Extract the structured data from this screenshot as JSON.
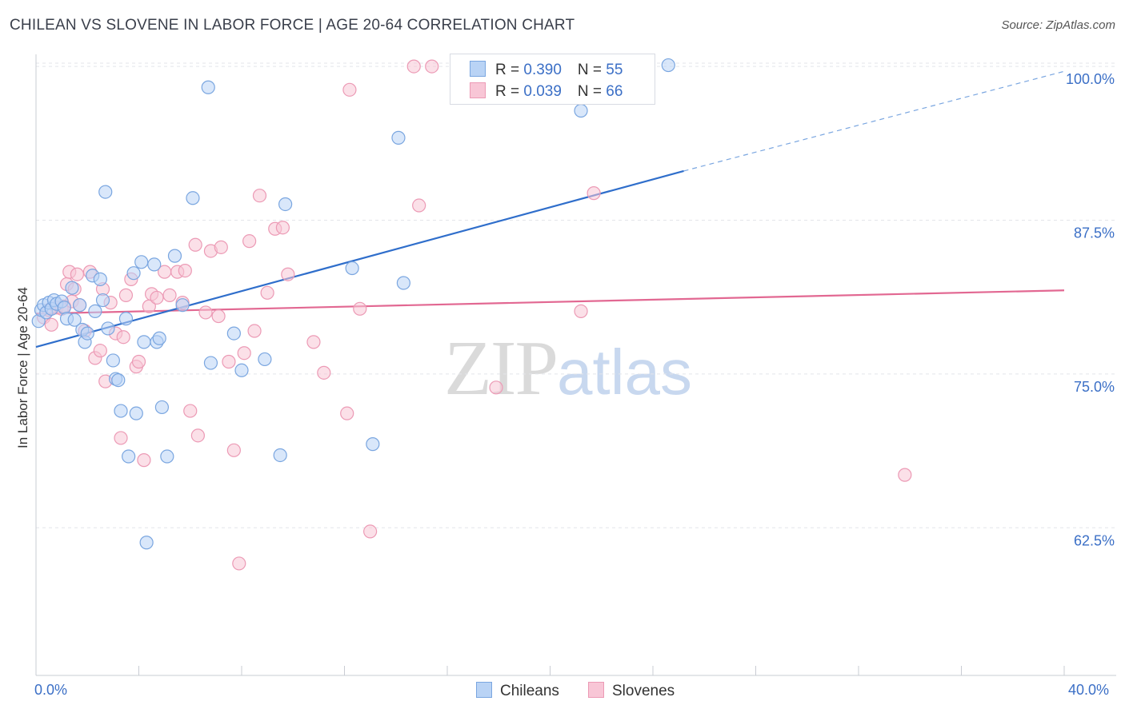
{
  "title": "CHILEAN VS SLOVENE IN LABOR FORCE | AGE 20-64 CORRELATION CHART",
  "source": "Source: ZipAtlas.com",
  "watermark": {
    "zip": "ZIP",
    "atlas": "atlas"
  },
  "legend": {
    "chileans": {
      "r_label": "R = ",
      "r_value": "0.390",
      "n_label": "N = ",
      "n_value": "55"
    },
    "slovenes": {
      "r_label": "R = ",
      "r_value": "0.039",
      "n_label": "N = ",
      "n_value": "66"
    }
  },
  "colors": {
    "chileans_fill": "#b9d3f5",
    "chileans_stroke": "#7aa6e0",
    "chileans_line": "#2f6ecb",
    "slovenes_fill": "#f8c6d6",
    "slovenes_stroke": "#ec9ab5",
    "slovenes_line": "#e26892",
    "tick_label": "#3b6fc6"
  },
  "chart_data": {
    "type": "scatter",
    "title": "CHILEAN VS SLOVENE IN LABOR FORCE | AGE 20-64 CORRELATION CHART",
    "xlabel": "",
    "ylabel": "In Labor Force | Age 20-64",
    "xlim": [
      0,
      40
    ],
    "ylim": [
      50.5,
      101.5
    ],
    "x_tick_labels": [
      "0.0%",
      "40.0%"
    ],
    "y_ticks": [
      62.5,
      75.0,
      87.5,
      100.0
    ],
    "y_tick_labels": [
      "62.5%",
      "75.0%",
      "87.5%",
      "100.0%"
    ],
    "grid": true,
    "legend_position": "top-center",
    "series": [
      {
        "name": "Chileans",
        "R": 0.39,
        "N": 55,
        "trend": {
          "x": [
            0,
            25.2
          ],
          "y": [
            77.2,
            91.5
          ],
          "dashed_to": [
            40,
            99.6
          ]
        },
        "points": [
          [
            0.1,
            79.3
          ],
          [
            0.2,
            80.2
          ],
          [
            0.3,
            80.6
          ],
          [
            0.4,
            80.0
          ],
          [
            0.5,
            80.8
          ],
          [
            0.6,
            80.3
          ],
          [
            0.7,
            81.0
          ],
          [
            0.8,
            80.7
          ],
          [
            1.0,
            80.9
          ],
          [
            1.1,
            80.4
          ],
          [
            1.2,
            79.5
          ],
          [
            1.4,
            82.0
          ],
          [
            1.5,
            79.4
          ],
          [
            1.7,
            80.6
          ],
          [
            1.8,
            78.6
          ],
          [
            1.9,
            77.6
          ],
          [
            2.0,
            78.3
          ],
          [
            2.2,
            83.0
          ],
          [
            2.3,
            80.1
          ],
          [
            2.5,
            82.7
          ],
          [
            2.6,
            81.0
          ],
          [
            2.7,
            89.8
          ],
          [
            2.8,
            78.7
          ],
          [
            3.0,
            76.1
          ],
          [
            3.1,
            74.6
          ],
          [
            3.2,
            74.5
          ],
          [
            3.3,
            72.0
          ],
          [
            3.5,
            79.5
          ],
          [
            3.6,
            68.3
          ],
          [
            3.8,
            83.2
          ],
          [
            3.9,
            71.8
          ],
          [
            4.1,
            84.1
          ],
          [
            4.2,
            77.6
          ],
          [
            4.3,
            61.3
          ],
          [
            4.6,
            83.9
          ],
          [
            4.7,
            77.6
          ],
          [
            4.8,
            77.9
          ],
          [
            4.9,
            72.3
          ],
          [
            5.1,
            68.3
          ],
          [
            5.4,
            84.6
          ],
          [
            5.7,
            80.6
          ],
          [
            6.1,
            89.3
          ],
          [
            6.7,
            98.3
          ],
          [
            6.8,
            75.9
          ],
          [
            7.7,
            78.3
          ],
          [
            8.0,
            75.3
          ],
          [
            8.9,
            76.2
          ],
          [
            9.5,
            68.4
          ],
          [
            9.7,
            88.8
          ],
          [
            12.3,
            83.6
          ],
          [
            13.1,
            69.3
          ],
          [
            14.1,
            94.2
          ],
          [
            14.3,
            82.4
          ],
          [
            21.2,
            96.4
          ],
          [
            24.6,
            100.1
          ]
        ]
      },
      {
        "name": "Slovenes",
        "R": 0.039,
        "N": 66,
        "trend": {
          "x": [
            0,
            40
          ],
          "y": [
            79.9,
            81.8
          ]
        },
        "points": [
          [
            0.3,
            79.6
          ],
          [
            0.5,
            80.2
          ],
          [
            0.6,
            79.0
          ],
          [
            0.8,
            80.4
          ],
          [
            1.0,
            80.3
          ],
          [
            1.1,
            80.5
          ],
          [
            1.2,
            82.3
          ],
          [
            1.3,
            83.3
          ],
          [
            1.4,
            80.9
          ],
          [
            1.5,
            81.9
          ],
          [
            1.6,
            83.1
          ],
          [
            1.7,
            80.6
          ],
          [
            1.9,
            78.5
          ],
          [
            2.1,
            83.3
          ],
          [
            2.3,
            76.3
          ],
          [
            2.5,
            76.9
          ],
          [
            2.6,
            81.9
          ],
          [
            2.7,
            74.4
          ],
          [
            2.9,
            80.8
          ],
          [
            3.1,
            78.3
          ],
          [
            3.3,
            69.8
          ],
          [
            3.4,
            78.0
          ],
          [
            3.5,
            81.4
          ],
          [
            3.7,
            82.7
          ],
          [
            3.9,
            75.6
          ],
          [
            4.0,
            76.0
          ],
          [
            4.2,
            68.0
          ],
          [
            4.4,
            80.5
          ],
          [
            4.5,
            81.5
          ],
          [
            4.7,
            81.2
          ],
          [
            5.0,
            83.3
          ],
          [
            5.2,
            81.4
          ],
          [
            5.5,
            83.3
          ],
          [
            5.7,
            80.8
          ],
          [
            5.8,
            83.4
          ],
          [
            6.0,
            72.0
          ],
          [
            6.2,
            85.5
          ],
          [
            6.3,
            70.0
          ],
          [
            6.6,
            80.0
          ],
          [
            6.8,
            85.0
          ],
          [
            7.1,
            79.7
          ],
          [
            7.2,
            85.3
          ],
          [
            7.5,
            76.0
          ],
          [
            7.7,
            68.8
          ],
          [
            7.9,
            59.6
          ],
          [
            8.1,
            76.7
          ],
          [
            8.3,
            85.8
          ],
          [
            8.5,
            78.5
          ],
          [
            8.7,
            89.5
          ],
          [
            9.0,
            81.6
          ],
          [
            9.3,
            86.8
          ],
          [
            9.6,
            86.9
          ],
          [
            9.8,
            83.1
          ],
          [
            10.8,
            77.6
          ],
          [
            11.2,
            75.1
          ],
          [
            12.1,
            71.8
          ],
          [
            12.2,
            98.1
          ],
          [
            12.6,
            80.3
          ],
          [
            13.0,
            62.2
          ],
          [
            14.9,
            88.7
          ],
          [
            14.7,
            100.0
          ],
          [
            15.4,
            100.0
          ],
          [
            17.9,
            73.9
          ],
          [
            21.2,
            80.1
          ],
          [
            21.7,
            89.7
          ],
          [
            33.8,
            66.8
          ]
        ]
      }
    ]
  }
}
